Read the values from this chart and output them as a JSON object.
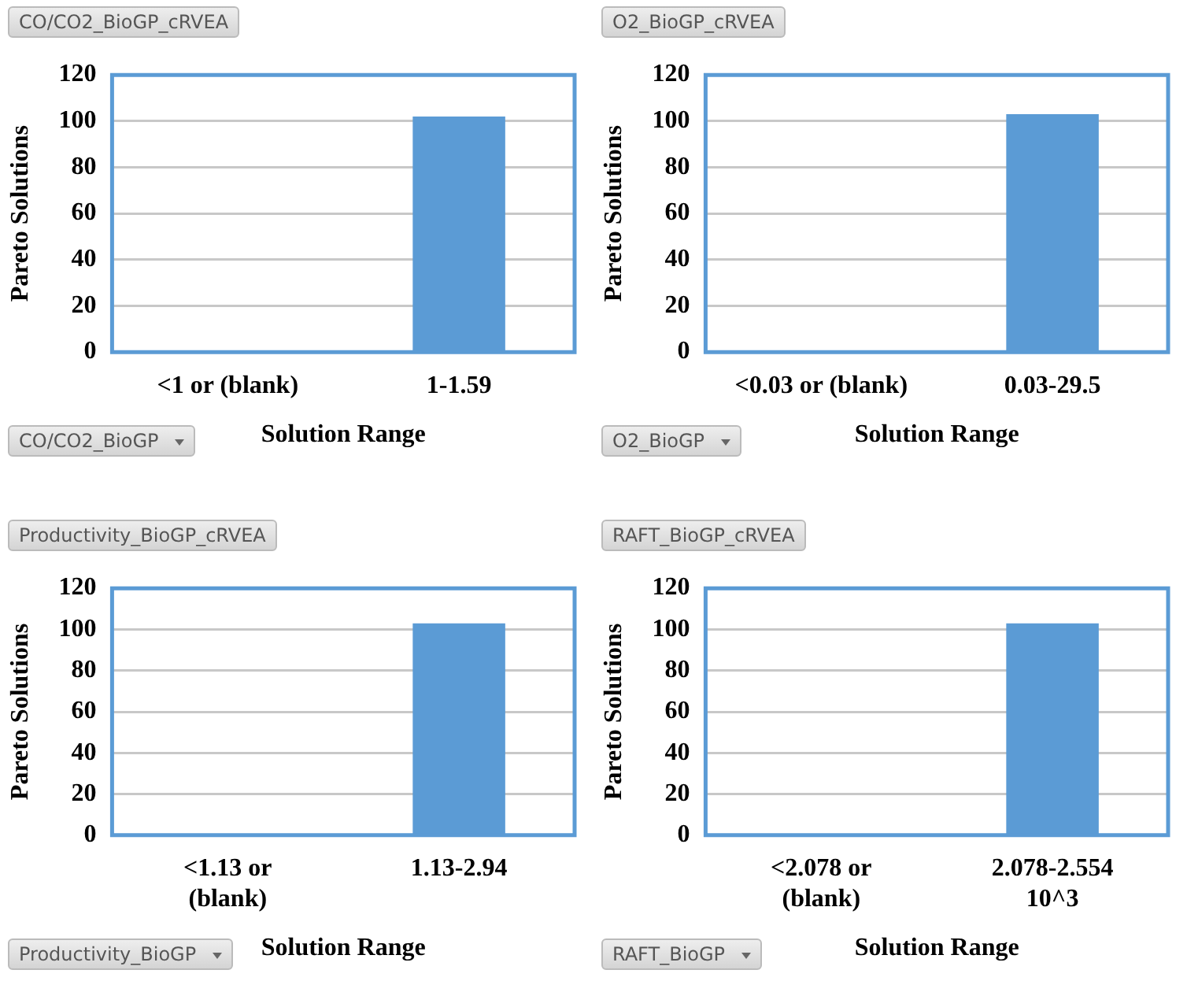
{
  "chart_data": [
    {
      "type": "bar",
      "title": "CO/CO2_BioGP_cRVEA",
      "xlabel": "Solution Range",
      "ylabel": "Pareto Solutions",
      "categories": [
        "<1 or (blank)",
        "1-1.59"
      ],
      "values": [
        0,
        102
      ],
      "color": "#5b9bd5",
      "ylim": [
        0,
        120
      ],
      "yticks": [
        0,
        20,
        40,
        60,
        80,
        100,
        120
      ],
      "grid": "y",
      "annotations": [
        "CO/CO2_BioGP"
      ]
    },
    {
      "type": "bar",
      "title": "O2_BioGP_cRVEA",
      "xlabel": "Solution Range",
      "ylabel": "Pareto Solutions",
      "categories": [
        "<0.03 or (blank)",
        "0.03-29.5"
      ],
      "values": [
        0,
        103
      ],
      "color": "#5b9bd5",
      "ylim": [
        0,
        120
      ],
      "yticks": [
        0,
        20,
        40,
        60,
        80,
        100,
        120
      ],
      "grid": "y",
      "annotations": [
        "O2_BioGP"
      ]
    },
    {
      "type": "bar",
      "title": "Productivity_BioGP_cRVEA",
      "xlabel": "Solution Range",
      "ylabel": "Pareto Solutions",
      "categories": [
        "<1.13 or\n(blank)",
        "1.13-2.94"
      ],
      "values": [
        0,
        103
      ],
      "color": "#5b9bd5",
      "ylim": [
        0,
        120
      ],
      "yticks": [
        0,
        20,
        40,
        60,
        80,
        100,
        120
      ],
      "grid": "y",
      "annotations": [
        "Productivity_BioGP"
      ]
    },
    {
      "type": "bar",
      "title": "RAFT_BioGP_cRVEA",
      "xlabel": "Solution Range",
      "ylabel": "Pareto Solutions",
      "categories": [
        "<2.078 or\n(blank)",
        "2.078-2.554\n10^3"
      ],
      "values": [
        0,
        103
      ],
      "color": "#5b9bd5",
      "ylim": [
        0,
        120
      ],
      "yticks": [
        0,
        20,
        40,
        60,
        80,
        100,
        120
      ],
      "grid": "y",
      "annotations": [
        "RAFT_BioGP"
      ]
    }
  ]
}
